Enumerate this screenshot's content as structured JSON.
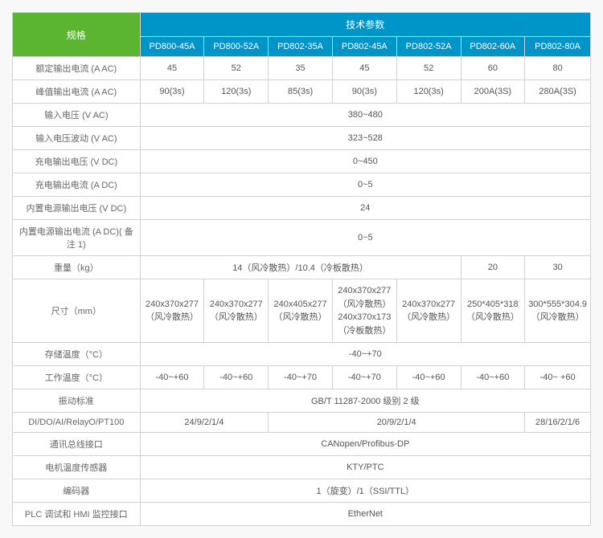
{
  "header": {
    "spec": "规格",
    "tech": "技术参数"
  },
  "models": [
    "PD800-45A",
    "PD800-52A",
    "PD802-35A",
    "PD802-45A",
    "PD802-52A",
    "PD802-60A",
    "PD802-80A"
  ],
  "rows": {
    "rated_current": {
      "label": "额定输出电流 (A AC)",
      "vals": [
        "45",
        "52",
        "35",
        "45",
        "52",
        "60",
        "80"
      ]
    },
    "peak_current": {
      "label": "峰值输出电流 (A AC)",
      "vals": [
        "90(3s)",
        "120(3s)",
        "85(3s)",
        "90(3s)",
        "120(3s)",
        "200A(3S)",
        "280A(3S)"
      ]
    },
    "input_voltage": {
      "label": "输入电压 (V AC)",
      "val": "380~480"
    },
    "input_fluct": {
      "label": "输入电压波动 (V AC)",
      "val": "323~528"
    },
    "charge_v": {
      "label": "充电输出电压 (V DC)",
      "val": "0~450"
    },
    "charge_a": {
      "label": "充电输出电流 (A DC)",
      "val": "0~5"
    },
    "int_ps_v": {
      "label": "内置电源输出电压 (V DC)",
      "val": "24"
    },
    "int_ps_a": {
      "label": "内置电源输出电流 (A DC)( 备注 1)",
      "val": "0~5"
    },
    "weight": {
      "label": "重量（kg）",
      "v1": "14（风冷散热）/10.4（冷板散热）",
      "v2": "20",
      "v3": "30"
    },
    "dimensions": {
      "label": "尺寸（mm）",
      "vals": [
        "240x370x277\n（风冷散热）",
        "240x370x277\n（风冷散热）",
        "240x405x277\n（风冷散热）",
        "240x370x277\n（风冷散热）\n240x370x173\n（冷板散热）",
        "240x370x277\n（风冷散热）",
        "250*405*318\n（风冷散热）",
        "300*555*304.9\n（风冷散热）"
      ]
    },
    "storage_temp": {
      "label": "存储温度（°C）",
      "val": "-40~+70"
    },
    "work_temp": {
      "label": "工作温度（°C）",
      "vals": [
        "-40~+60",
        "-40~+60",
        "-40~+70",
        "-40~+70",
        "-40~+60",
        "-40~+60",
        "-40~ +60"
      ]
    },
    "vibration": {
      "label": "振动标准",
      "val": "GB/T 11287-2000 级别 2 级"
    },
    "dido": {
      "label": "DI/DO/AI/RelayO/PT100",
      "v1": "24/9/2/1/4",
      "v2": "20/9/2/1/4",
      "v3": "28/16/2/1/6"
    },
    "bus": {
      "label": "通讯总线接口",
      "val": "CANopen/Profibus-DP"
    },
    "motor_temp": {
      "label": "电机温度传感器",
      "val": "KTY/PTC"
    },
    "encoder": {
      "label": "编码器",
      "val": "1（旋变）/1（SSI/TTL）"
    },
    "plc": {
      "label": "PLC 调试和 HMI 监控接口",
      "val": "EtherNet"
    }
  }
}
